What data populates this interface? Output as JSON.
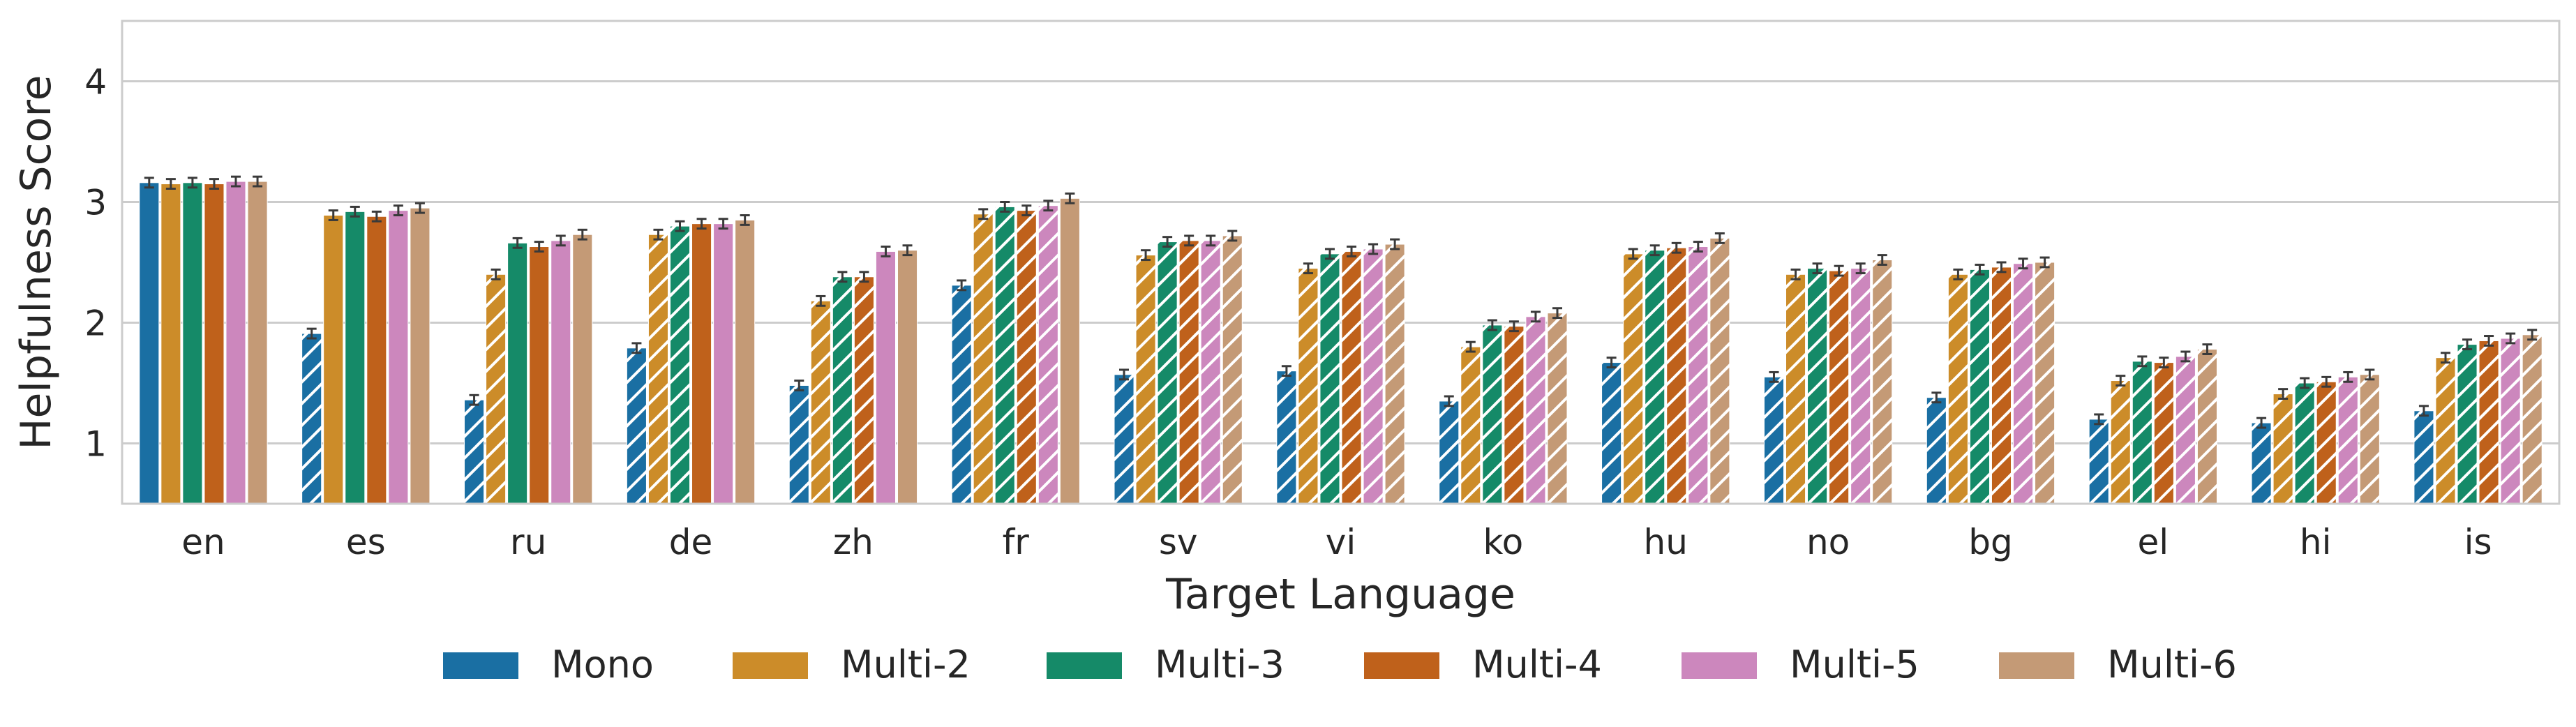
{
  "chart_data": {
    "type": "bar",
    "xlabel": "Target Language",
    "ylabel": "Helpfulness Score",
    "ylim": [
      0.5,
      4.5
    ],
    "yticks": [
      "1",
      "2",
      "3",
      "4"
    ],
    "grid": true,
    "legend_position": "bottom",
    "categories": [
      "en",
      "es",
      "ru",
      "de",
      "zh",
      "fr",
      "sv",
      "vi",
      "ko",
      "hu",
      "no",
      "bg",
      "el",
      "hi",
      "is"
    ],
    "error_bars": true,
    "hatched": "bars that differ from the training language mix are hatched with diagonal lines",
    "series": [
      {
        "name": "Mono",
        "color": "#1a6fa3",
        "values": [
          3.16,
          1.91,
          1.36,
          1.79,
          1.48,
          2.31,
          1.57,
          1.6,
          1.35,
          1.67,
          1.55,
          1.38,
          1.2,
          1.17,
          1.27
        ],
        "hatched": [
          false,
          true,
          true,
          true,
          true,
          true,
          true,
          true,
          true,
          true,
          true,
          true,
          true,
          true,
          true
        ]
      },
      {
        "name": "Multi-2",
        "color": "#cc8c29",
        "values": [
          3.15,
          2.89,
          2.4,
          2.73,
          2.18,
          2.9,
          2.56,
          2.45,
          1.8,
          2.57,
          2.4,
          2.4,
          1.52,
          1.41,
          1.71
        ],
        "hatched": [
          false,
          false,
          true,
          true,
          true,
          true,
          true,
          true,
          true,
          true,
          true,
          true,
          true,
          true,
          true
        ]
      },
      {
        "name": "Multi-3",
        "color": "#158a68",
        "values": [
          3.16,
          2.92,
          2.66,
          2.8,
          2.38,
          2.96,
          2.67,
          2.57,
          1.98,
          2.6,
          2.45,
          2.44,
          1.68,
          1.5,
          1.82
        ],
        "hatched": [
          false,
          false,
          false,
          true,
          true,
          true,
          true,
          true,
          true,
          true,
          true,
          true,
          true,
          true,
          true
        ]
      },
      {
        "name": "Multi-4",
        "color": "#bf611b",
        "values": [
          3.15,
          2.88,
          2.63,
          2.82,
          2.38,
          2.93,
          2.68,
          2.59,
          1.97,
          2.62,
          2.43,
          2.46,
          1.67,
          1.51,
          1.85
        ],
        "hatched": [
          false,
          false,
          false,
          false,
          true,
          true,
          true,
          true,
          true,
          true,
          true,
          true,
          true,
          true,
          true
        ]
      },
      {
        "name": "Multi-5",
        "color": "#cc87bd",
        "values": [
          3.17,
          2.93,
          2.68,
          2.82,
          2.59,
          2.97,
          2.68,
          2.61,
          2.05,
          2.63,
          2.45,
          2.49,
          1.72,
          1.55,
          1.87
        ],
        "hatched": [
          false,
          false,
          false,
          false,
          false,
          true,
          true,
          true,
          true,
          true,
          true,
          true,
          true,
          true,
          true
        ]
      },
      {
        "name": "Multi-6",
        "color": "#c49a76",
        "values": [
          3.17,
          2.95,
          2.73,
          2.85,
          2.6,
          3.03,
          2.72,
          2.65,
          2.08,
          2.7,
          2.52,
          2.5,
          1.78,
          1.57,
          1.9
        ],
        "hatched": [
          false,
          false,
          false,
          false,
          false,
          false,
          true,
          true,
          true,
          true,
          true,
          true,
          true,
          true,
          true
        ]
      }
    ]
  }
}
